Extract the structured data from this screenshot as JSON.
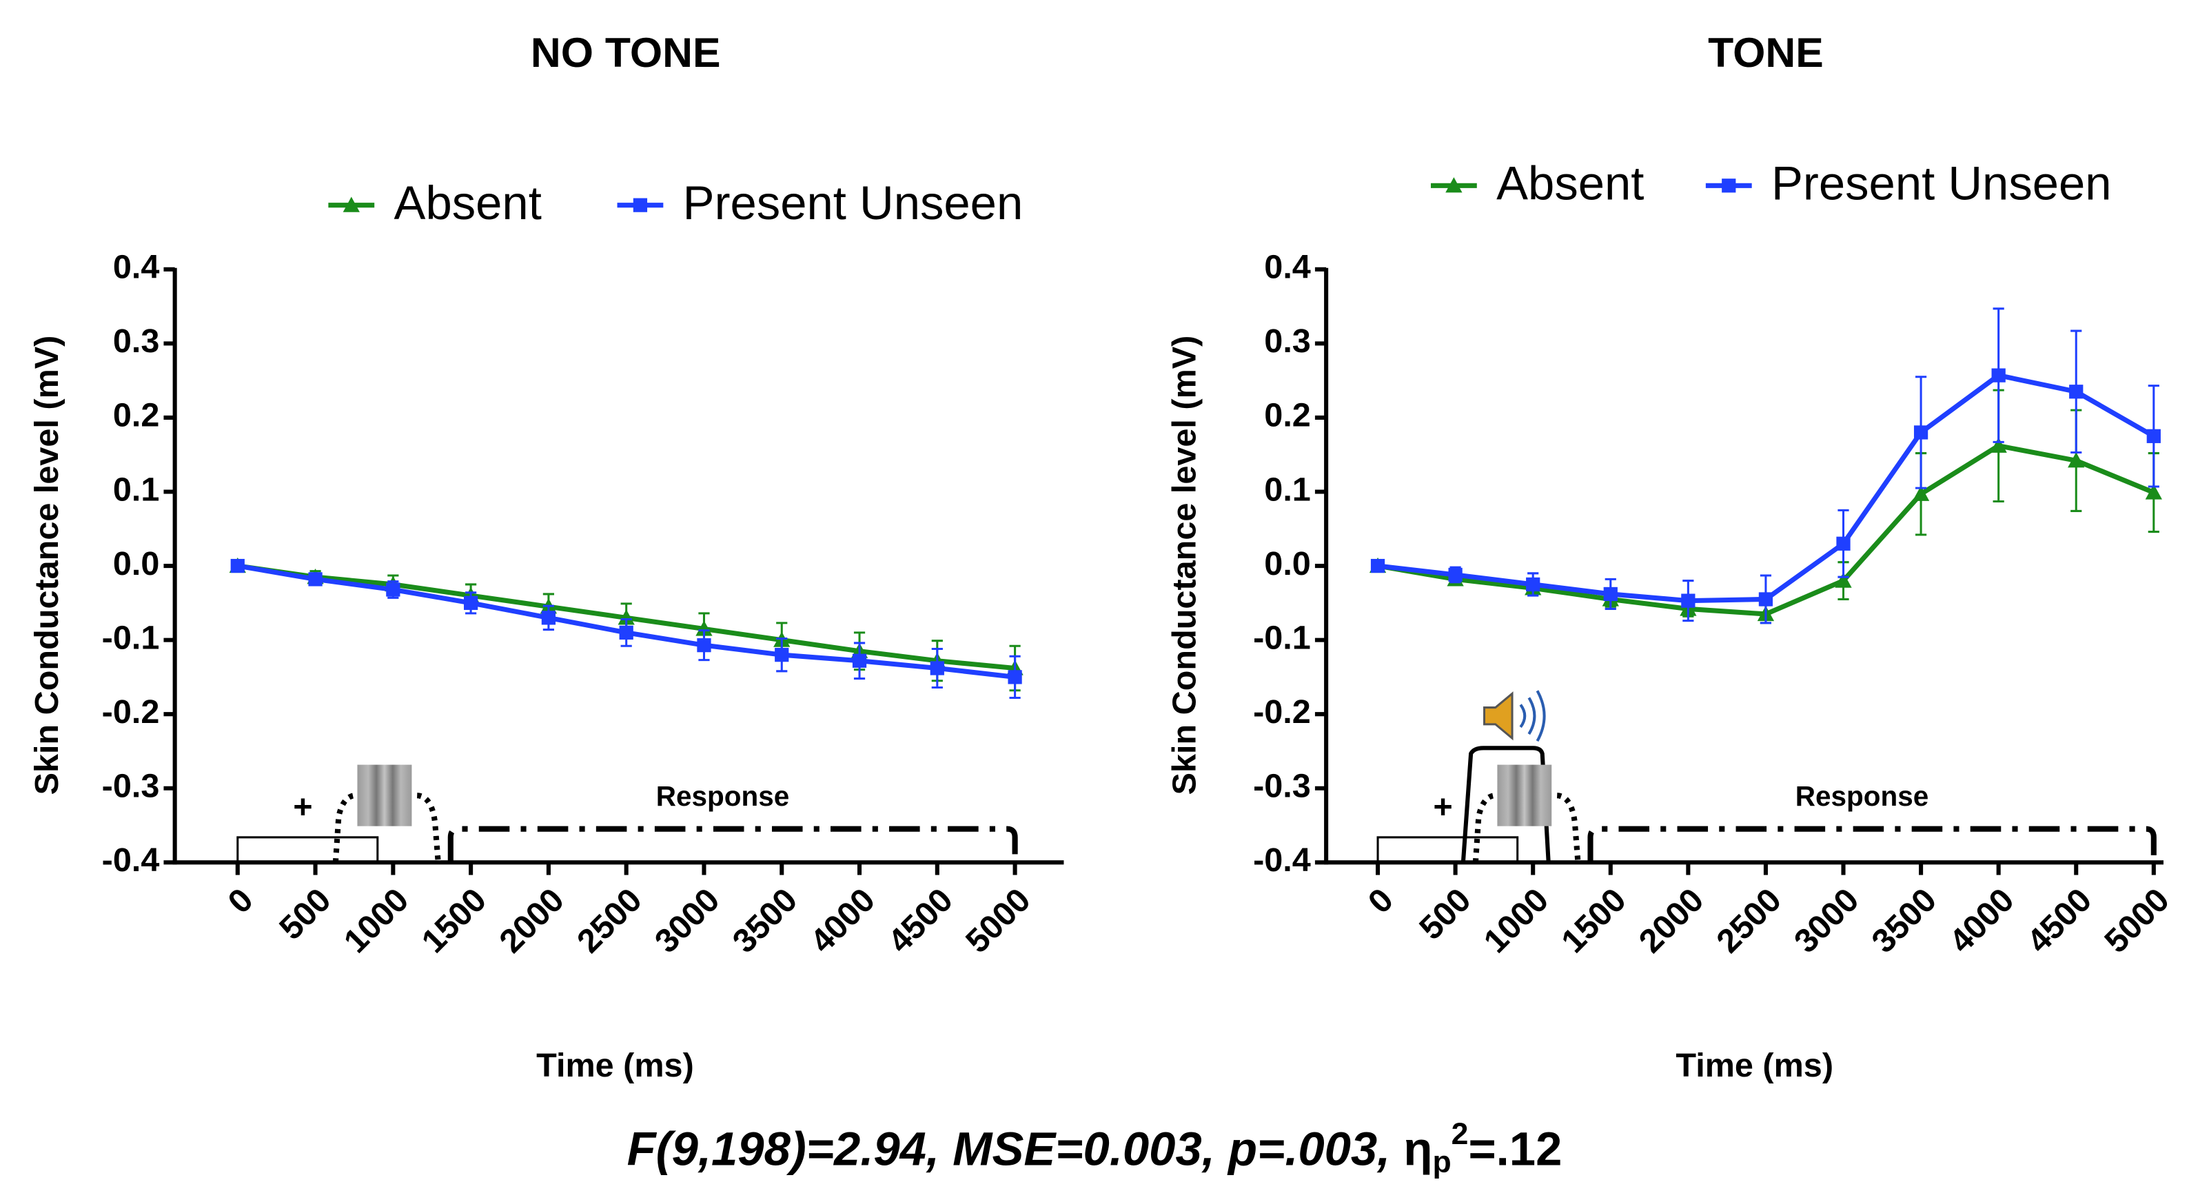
{
  "chart_data": [
    {
      "type": "line",
      "title": "NO TONE",
      "x_label": "Time (ms)",
      "y_label": "Skin Conductance level (mV)",
      "x": [
        0,
        500,
        1000,
        1500,
        2000,
        2500,
        3000,
        3500,
        4000,
        4500,
        5000
      ],
      "xlim": [
        0,
        5000
      ],
      "xticks": [
        0,
        500,
        1000,
        1500,
        2000,
        2500,
        3000,
        3500,
        4000,
        4500,
        5000
      ],
      "ylim": [
        -0.4,
        0.4
      ],
      "yticks": [
        0.4,
        0.3,
        0.2,
        0.1,
        {
          "value": 0,
          "label": "0.0"
        },
        -0.1,
        -0.2,
        -0.3,
        -0.4
      ],
      "series": [
        {
          "name": "Absent",
          "color": "#1a8c1a",
          "marker": "triangle",
          "values": [
            0,
            -0.015,
            -0.025,
            -0.04,
            -0.055,
            -0.07,
            -0.085,
            -0.1,
            -0.115,
            -0.128,
            -0.138
          ],
          "errors": [
            0.005,
            0.008,
            0.012,
            0.015,
            0.017,
            0.019,
            0.021,
            0.023,
            0.025,
            0.027,
            0.03
          ]
        },
        {
          "name": "Present Unseen",
          "color": "#1f3fff",
          "marker": "square",
          "values": [
            0,
            -0.018,
            -0.032,
            -0.05,
            -0.07,
            -0.09,
            -0.107,
            -0.12,
            -0.128,
            -0.138,
            -0.15
          ],
          "errors": [
            0.005,
            0.008,
            0.011,
            0.014,
            0.016,
            0.018,
            0.02,
            0.022,
            0.024,
            0.026,
            0.028
          ]
        }
      ],
      "annotations": [
        "+",
        "Response"
      ]
    },
    {
      "type": "line",
      "title": "TONE",
      "x_label": "Time (ms)",
      "y_label": "Skin Conductance level (mV)",
      "x": [
        0,
        500,
        1000,
        1500,
        2000,
        2500,
        3000,
        3500,
        4000,
        4500,
        5000
      ],
      "xlim": [
        0,
        5000
      ],
      "xticks": [
        0,
        500,
        1000,
        1500,
        2000,
        2500,
        3000,
        3500,
        4000,
        4500,
        5000
      ],
      "ylim": [
        -0.4,
        0.4
      ],
      "yticks": [
        0.4,
        0.3,
        0.2,
        0.1,
        {
          "value": 0,
          "label": "0.0"
        },
        -0.1,
        -0.2,
        -0.3,
        -0.4
      ],
      "series": [
        {
          "name": "Absent",
          "color": "#1a8c1a",
          "marker": "triangle",
          "values": [
            0,
            -0.018,
            -0.03,
            -0.045,
            -0.058,
            -0.065,
            -0.02,
            0.097,
            0.162,
            0.142,
            0.099
          ],
          "errors": [
            0.005,
            0.008,
            0.008,
            0.01,
            0.01,
            0.012,
            0.025,
            0.055,
            0.075,
            0.068,
            0.053
          ]
        },
        {
          "name": "Present Unseen",
          "color": "#1f3fff",
          "marker": "square",
          "values": [
            0,
            -0.012,
            -0.025,
            -0.038,
            -0.047,
            -0.045,
            0.03,
            0.18,
            0.257,
            0.235,
            0.175
          ],
          "errors": [
            0.005,
            0.01,
            0.015,
            0.02,
            0.027,
            0.032,
            0.045,
            0.075,
            0.09,
            0.082,
            0.068
          ]
        }
      ],
      "annotations": [
        "+",
        "Response"
      ]
    }
  ],
  "footer": {
    "statistics": "F(9,198)=2.94,  MSE=0.003,  p=.003, ",
    "effect_symbol": "η",
    "effect_subscript": "p",
    "effect_superscript": "2",
    "effect_value": "=.12"
  }
}
